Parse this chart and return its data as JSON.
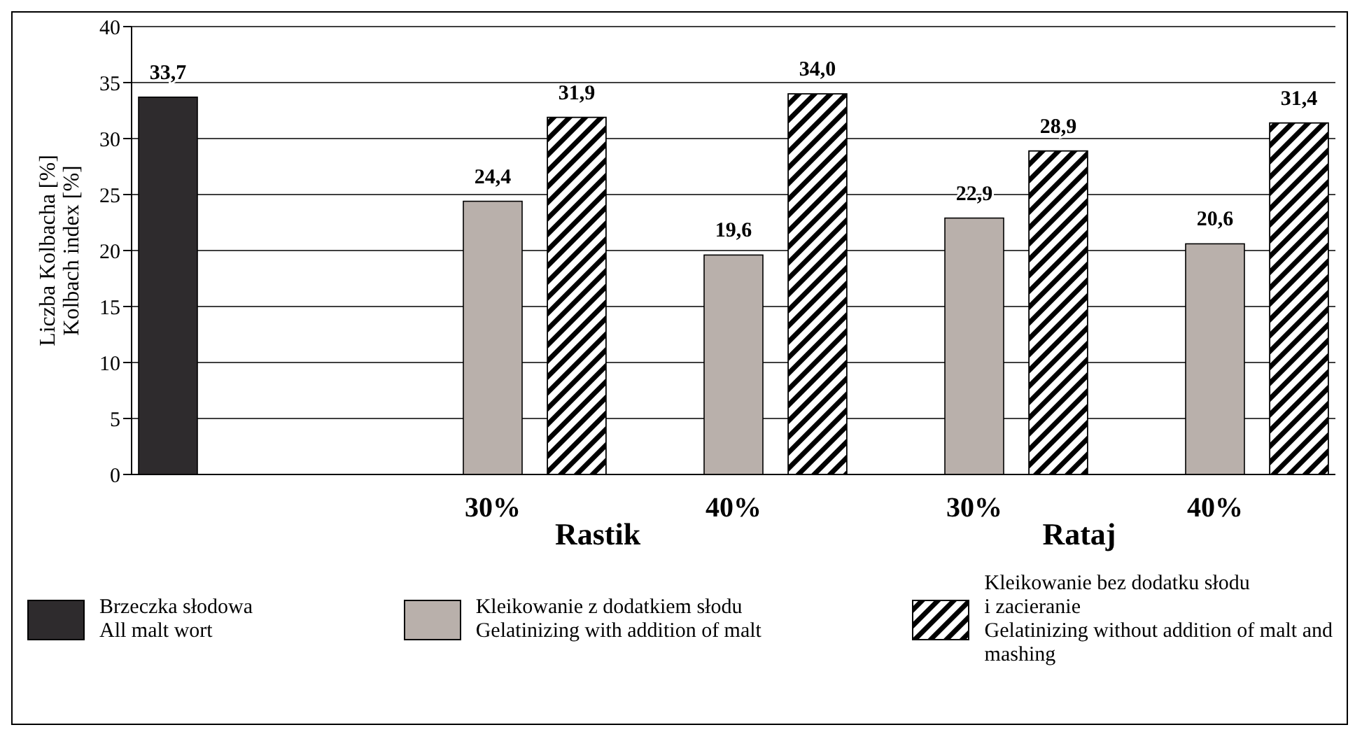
{
  "chart_data": {
    "type": "bar",
    "ylabel": "Liczba Kolbacha [%]\nKolbach index [%]",
    "categories": [
      null,
      "30%",
      "40%",
      "30%",
      "40%"
    ],
    "annotations": [
      "Rastik",
      "Rataj"
    ],
    "ylim": [
      0,
      40
    ],
    "yticks": [
      0,
      5,
      10,
      15,
      20,
      25,
      30,
      35,
      40
    ],
    "grid": "y",
    "legend": "bottom",
    "series": [
      {
        "name": "Brzeczka słodowa\nAll malt wort",
        "color": "#2e2b2d",
        "values": [
          33.7,
          null,
          null,
          null,
          null
        ],
        "value_labels": [
          "33,7",
          null,
          null,
          null,
          null
        ]
      },
      {
        "name": "Kleikowanie z dodatkiem słodu\nGelatinizing with addition of malt",
        "color": "#b9b0ab",
        "values": [
          null,
          24.4,
          19.6,
          22.9,
          20.6
        ],
        "value_labels": [
          null,
          "24,4",
          "19,6",
          "22,9",
          "20,6"
        ]
      },
      {
        "name": "Kleikowanie bez dodatku słodu\ni zacieranie\nGelatinizing without addition of malt and\nmashing",
        "color": "#000000",
        "values": [
          null,
          31.9,
          34.0,
          28.9,
          31.4
        ],
        "value_labels": [
          null,
          "31,9",
          "34,0",
          "28,9",
          "31,4"
        ]
      }
    ]
  }
}
